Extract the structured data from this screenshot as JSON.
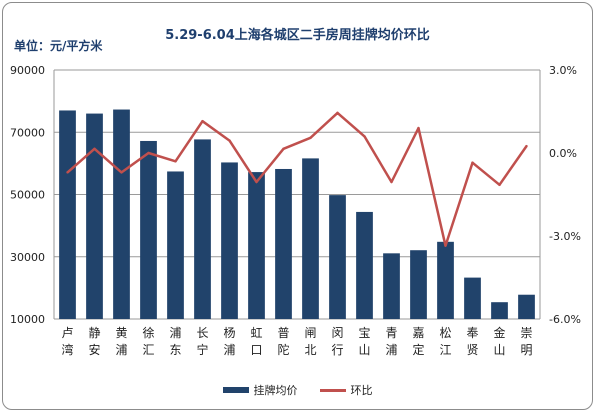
{
  "chart_data": {
    "type": "bar+line",
    "title": "5.29-6.04上海各城区二手房周挂牌均价环比",
    "unit_label": "单位：元/平方米",
    "categories": [
      "卢湾",
      "静安",
      "黄浦",
      "徐汇",
      "浦东",
      "长宁",
      "杨浦",
      "虹口",
      "普陀",
      "闸北",
      "闵行",
      "宝山",
      "青浦",
      "嘉定",
      "松江",
      "奉贤",
      "金山",
      "崇明"
    ],
    "category_lines": [
      [
        "卢",
        "湾"
      ],
      [
        "静",
        "安"
      ],
      [
        "黄",
        "浦"
      ],
      [
        "徐",
        "汇"
      ],
      [
        "浦",
        "东"
      ],
      [
        "长",
        "宁"
      ],
      [
        "杨",
        "浦"
      ],
      [
        "虹",
        "口"
      ],
      [
        "普",
        "陀"
      ],
      [
        "闸",
        "北"
      ],
      [
        "闵",
        "行"
      ],
      [
        "宝",
        "山"
      ],
      [
        "青",
        "浦"
      ],
      [
        "嘉",
        "定"
      ],
      [
        "松",
        "江"
      ],
      [
        "奉",
        "贤"
      ],
      [
        "金",
        "山"
      ],
      [
        "崇",
        "明"
      ]
    ],
    "series": [
      {
        "name": "挂牌均价",
        "type": "bar",
        "axis": "left",
        "color": "#21436b",
        "values": [
          77000,
          76000,
          77300,
          67200,
          57400,
          67700,
          60300,
          57200,
          58200,
          61600,
          49800,
          44400,
          31100,
          32100,
          34800,
          23300,
          15400,
          17800
        ]
      },
      {
        "name": "环比",
        "type": "line",
        "axis": "right",
        "color": "#c0504d",
        "values": [
          -0.7,
          0.15,
          -0.7,
          0.0,
          -0.3,
          1.15,
          0.45,
          -1.05,
          0.15,
          0.55,
          1.45,
          0.6,
          -1.05,
          0.9,
          -3.35,
          -0.35,
          -1.15,
          0.25
        ]
      }
    ],
    "left_axis": {
      "min": 10000,
      "max": 90000,
      "ticks": [
        10000,
        30000,
        50000,
        70000,
        90000
      ],
      "tick_labels": [
        "10000",
        "30000",
        "50000",
        "70000",
        "90000"
      ]
    },
    "right_axis": {
      "min": -6.0,
      "max": 3.0,
      "ticks": [
        -6.0,
        -3.0,
        0.0,
        3.0
      ],
      "tick_labels": [
        "-6.0%",
        "-3.0%",
        "0.0%",
        "3.0%"
      ]
    },
    "grid": true,
    "legend_position": "bottom"
  }
}
